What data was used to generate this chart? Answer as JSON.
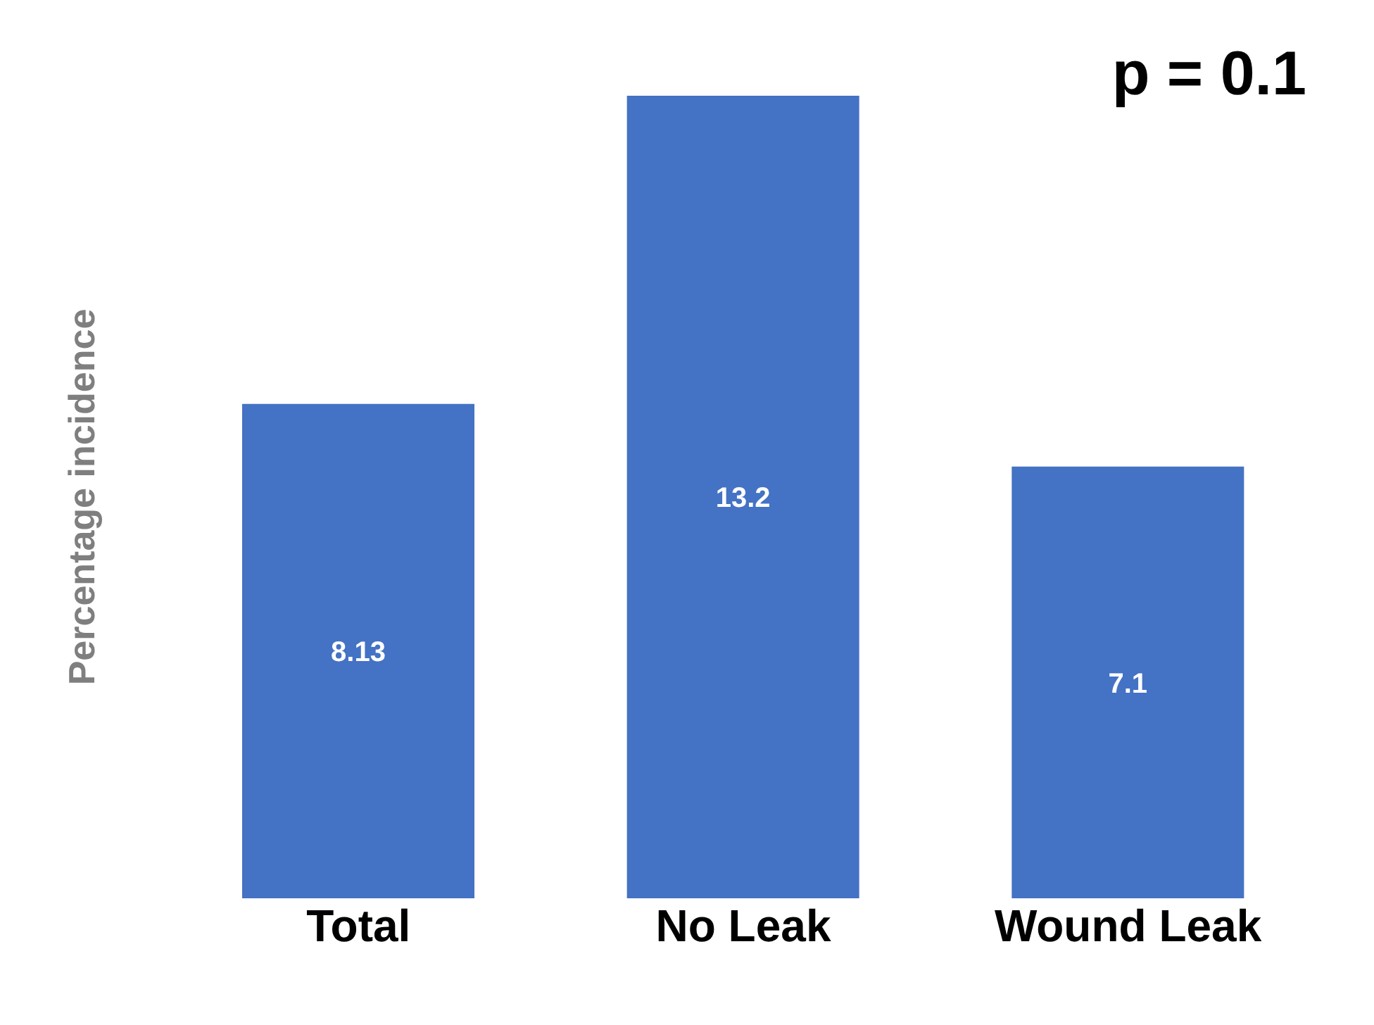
{
  "chart_data": {
    "type": "bar",
    "ylabel": "Percentage incidence",
    "categories": [
      "Total",
      "No Leak",
      "Wound Leak"
    ],
    "values": [
      8.13,
      13.2,
      7.1
    ],
    "color": "#4472c4",
    "data_labels": true,
    "annotations": [
      "p = 0.1"
    ],
    "grid": false,
    "legend": false
  }
}
